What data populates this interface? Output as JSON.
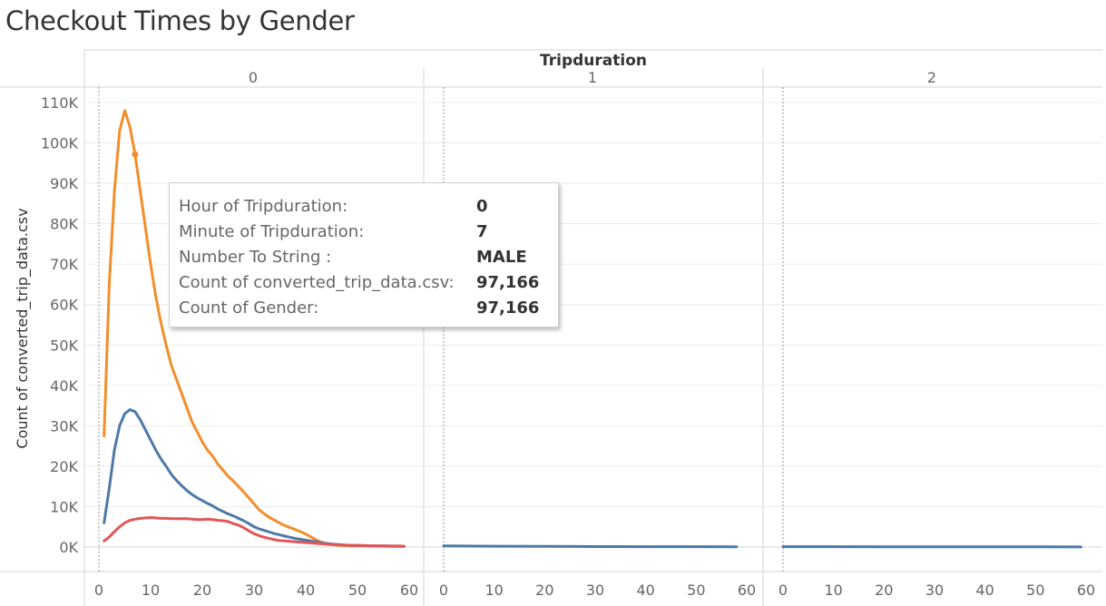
{
  "title": "Checkout Times by Gender",
  "chart_data": {
    "type": "line",
    "column_header": "Tripduration",
    "panels": [
      "0",
      "1",
      "2"
    ],
    "ylabel": "Count of converted_trip_data.csv",
    "ylim": [
      0,
      110000
    ],
    "yticks": [
      0,
      10000,
      20000,
      30000,
      40000,
      50000,
      60000,
      70000,
      80000,
      90000,
      100000,
      110000
    ],
    "ytick_labels": [
      "0K",
      "10K",
      "20K",
      "30K",
      "40K",
      "50K",
      "60K",
      "70K",
      "80K",
      "90K",
      "100K",
      "110K"
    ],
    "xlim": [
      0,
      60
    ],
    "xticks": [
      0,
      10,
      20,
      30,
      40,
      50,
      60
    ],
    "xtick_labels": [
      "0",
      "10",
      "20",
      "30",
      "40",
      "50",
      "60"
    ],
    "grid": true,
    "series": [
      {
        "color": "#f28e2b",
        "panels": [
          {
            "x": [
              1,
              2,
              3,
              4,
              5,
              6,
              7,
              8,
              9,
              10,
              11,
              12,
              13,
              14,
              15,
              16,
              17,
              18,
              19,
              20,
              21,
              22,
              23,
              24,
              25,
              26,
              27,
              28,
              29,
              30,
              31,
              32,
              33,
              34,
              35,
              36,
              37,
              38,
              39,
              40,
              41,
              42,
              43,
              44,
              45,
              46,
              47,
              48,
              49,
              50,
              51,
              52,
              53,
              54,
              55,
              56,
              57,
              58,
              59
            ],
            "y": [
              27500,
              65000,
              88000,
              103000,
              108000,
              104000,
              97166,
              88000,
              79000,
              70000,
              62000,
              55500,
              50000,
              45000,
              41500,
              38000,
              34500,
              31000,
              28500,
              26000,
              24000,
              22500,
              20500,
              19000,
              17500,
              16300,
              15000,
              13600,
              12200,
              10700,
              9200,
              8200,
              7300,
              6600,
              5900,
              5300,
              4800,
              4300,
              3800,
              3200,
              2500,
              1800,
              1200,
              800,
              600,
              500,
              400,
              350,
              300,
              280,
              260,
              240,
              230,
              220,
              200,
              190,
              180,
              170,
              160
            ]
          },
          {
            "x": [],
            "y": []
          },
          {
            "x": [],
            "y": []
          }
        ]
      },
      {
        "color": "#4e79a7",
        "panels": [
          {
            "x": [
              1,
              2,
              3,
              4,
              5,
              6,
              7,
              8,
              9,
              10,
              11,
              12,
              13,
              14,
              15,
              16,
              17,
              18,
              19,
              20,
              21,
              22,
              23,
              24,
              25,
              26,
              27,
              28,
              29,
              30,
              31,
              32,
              33,
              34,
              35,
              36,
              37,
              38,
              39,
              40,
              41,
              42,
              43,
              44,
              45,
              46,
              47,
              48,
              49,
              50,
              51,
              52,
              53,
              54,
              55,
              56,
              57,
              58,
              59
            ],
            "y": [
              6000,
              14500,
              24000,
              30000,
              33000,
              34000,
              33500,
              31500,
              29000,
              26500,
              24000,
              21800,
              20000,
              18000,
              16500,
              15200,
              14000,
              13000,
              12200,
              11500,
              10800,
              10200,
              9400,
              8800,
              8200,
              7700,
              7100,
              6500,
              5800,
              5000,
              4500,
              4100,
              3700,
              3300,
              3000,
              2700,
              2400,
              2100,
              1900,
              1700,
              1500,
              1300,
              1100,
              900,
              750,
              650,
              550,
              480,
              420,
              380,
              350,
              320,
              300,
              280,
              260,
              240,
              220,
              200,
              180
            ]
          },
          {
            "x": [
              0,
              10,
              20,
              30,
              40,
              50,
              58
            ],
            "y": [
              300,
              200,
              150,
              120,
              100,
              80,
              60
            ]
          },
          {
            "x": [
              0,
              10,
              20,
              30,
              40,
              50,
              59
            ],
            "y": [
              100,
              80,
              70,
              60,
              50,
              40,
              30
            ]
          }
        ]
      },
      {
        "color": "#e15759",
        "panels": [
          {
            "x": [
              1,
              2,
              3,
              4,
              5,
              6,
              7,
              8,
              9,
              10,
              11,
              12,
              13,
              14,
              15,
              16,
              17,
              18,
              19,
              20,
              21,
              22,
              23,
              24,
              25,
              26,
              27,
              28,
              29,
              30,
              31,
              32,
              33,
              34,
              35,
              36,
              37,
              38,
              39,
              40,
              41,
              42,
              43,
              44,
              45,
              46,
              47,
              48,
              49,
              50,
              51,
              52,
              53,
              54,
              55,
              56,
              57,
              58,
              59
            ],
            "y": [
              1500,
              2500,
              3800,
              5000,
              6000,
              6600,
              6900,
              7100,
              7200,
              7300,
              7200,
              7100,
              7100,
              7000,
              7000,
              7000,
              7000,
              6900,
              6800,
              6800,
              6900,
              6800,
              6600,
              6500,
              6300,
              5800,
              5400,
              4800,
              4000,
              3300,
              2800,
              2400,
              2100,
              1800,
              1600,
              1500,
              1400,
              1300,
              1200,
              1100,
              1000,
              900,
              800,
              700,
              600,
              550,
              500,
              450,
              400,
              380,
              360,
              340,
              320,
              300,
              280,
              260,
              250,
              240,
              230
            ]
          },
          {
            "x": [],
            "y": []
          },
          {
            "x": [],
            "y": []
          }
        ]
      }
    ],
    "highlight_point": {
      "panel": 0,
      "x": 7,
      "y": 97166,
      "color": "#f28e2b"
    }
  },
  "tooltip": {
    "rows": [
      {
        "label": "Hour of Tripduration:",
        "value": "0"
      },
      {
        "label": "Minute of Tripduration:",
        "value": "7"
      },
      {
        "label": "Number To String :",
        "value": "MALE"
      },
      {
        "label": "Count of converted_trip_data.csv:",
        "value": "97,166"
      },
      {
        "label": "Count of Gender:",
        "value": "97,166"
      }
    ]
  }
}
